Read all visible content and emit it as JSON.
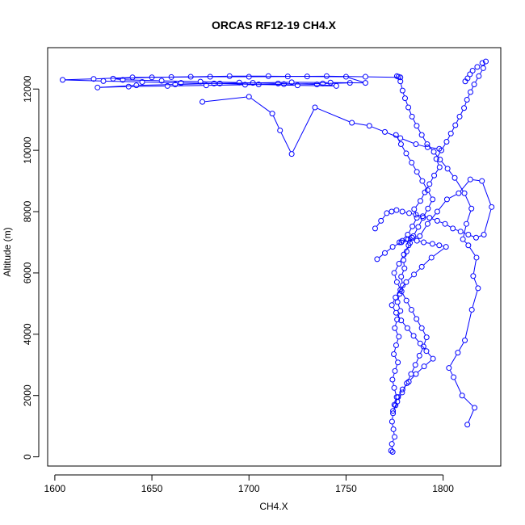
{
  "chart_data": {
    "type": "line",
    "title": "ORCAS RF12-19 CH4.X",
    "xlabel": "CH4.X",
    "ylabel": "Altitude (m)",
    "xlim": [
      1596.3,
      1829.7
    ],
    "ylim": [
      -300,
      13350
    ],
    "xticks": [
      1600,
      1650,
      1700,
      1750,
      1800
    ],
    "yticks": [
      0,
      2000,
      4000,
      6000,
      8000,
      10000,
      12000
    ],
    "xtick_labels": [
      "1600",
      "1650",
      "1700",
      "1750",
      "1800"
    ],
    "ytick_labels": [
      "0",
      "2000",
      "4000",
      "6000",
      "8000",
      "10000",
      "12000"
    ],
    "marker": "open-circle",
    "grid": false,
    "legend": "none",
    "colors": {
      "series": "#0000ff",
      "axes": "#000000",
      "background": "#ffffff"
    },
    "series": [
      {
        "x": [
          1773.2,
          1774.0,
          1773.6,
          1775.0,
          1774.4,
          1773.7,
          1774.2,
          1775.5,
          1776.1,
          1774.8,
          1773.9,
          1775.2,
          1776.7,
          1774.6,
          1775.8,
          1777.2,
          1775.1,
          1776.3,
          1778.0,
          1776.5,
          1777.7,
          1779.2,
          1778.4,
          1780.1,
          1779.6,
          1781.2,
          1782.9,
          1781.8,
          1784.2,
          1786.5,
          1785.1,
          1788.3,
          1790.6,
          1793.0,
          1795.4,
          1798.2,
          1796.5,
          1799.1,
          1801.8,
          1804.0,
          1806.3,
          1808.5,
          1810.8,
          1812.3,
          1814.1,
          1816.0,
          1818.4,
          1820.7,
          1822.0,
          1820.2,
          1817.6,
          1815.2,
          1813.8,
          1812.6,
          1811.4
        ],
        "y": [
          200,
          160,
          420,
          650,
          900,
          1150,
          1420,
          1680,
          1950,
          2250,
          2520,
          2800,
          3080,
          3350,
          3640,
          3920,
          4200,
          4480,
          4760,
          5050,
          5320,
          5600,
          5880,
          6150,
          6420,
          6700,
          6980,
          7250,
          7520,
          7800,
          8080,
          8350,
          8630,
          8900,
          9180,
          9450,
          9720,
          10000,
          10280,
          10550,
          10820,
          11100,
          11380,
          11650,
          11900,
          12150,
          12420,
          12680,
          12900,
          12850,
          12720,
          12600,
          12480,
          12350,
          12250
        ]
      },
      {
        "x": [
          1812.5,
          1816.2,
          1809.8,
          1805.4,
          1803.0,
          1807.6,
          1811.2,
          1814.8,
          1818.0,
          1815.5,
          1817.2,
          1813.0,
          1810.2,
          1812.0,
          1814.6,
          1811.0,
          1806.0,
          1802.3,
          1798.4,
          1795.2,
          1791.8,
          1789.0,
          1786.4,
          1784.0,
          1782.1,
          1780.4,
          1779.1,
          1778.0,
          1777.0,
          1776.2
        ],
        "y": [
          1050,
          1600,
          2000,
          2600,
          2900,
          3400,
          3800,
          4800,
          5500,
          5900,
          6500,
          6900,
          7100,
          7600,
          8100,
          8600,
          9100,
          9400,
          9700,
          9950,
          10200,
          10500,
          10800,
          11100,
          11400,
          11700,
          11950,
          12250,
          12400,
          12420
        ]
      },
      {
        "x": [
          1778.0,
          1760.0,
          1740.0,
          1720.0,
          1700.0,
          1680.0,
          1660.0,
          1640.0,
          1620.0,
          1604.0,
          1625.0,
          1645.0,
          1665.0,
          1685.0,
          1705.0,
          1725.0,
          1745.0,
          1735.0,
          1715.0,
          1695.0,
          1675.0,
          1655.0,
          1635.0,
          1630.0,
          1650.0,
          1670.0,
          1690.0,
          1710.0,
          1730.0,
          1750.0,
          1760.0,
          1742.0,
          1722.0,
          1702.0,
          1682.0,
          1662.0,
          1642.0,
          1622.0,
          1638.0,
          1658.0,
          1678.0,
          1698.0,
          1718.0,
          1738.0,
          1752.0
        ],
        "y": [
          12380,
          12400,
          12420,
          12410,
          12400,
          12400,
          12390,
          12380,
          12330,
          12300,
          12260,
          12230,
          12200,
          12180,
          12150,
          12120,
          12100,
          12150,
          12180,
          12210,
          12240,
          12270,
          12300,
          12340,
          12380,
          12400,
          12420,
          12420,
          12410,
          12400,
          12200,
          12210,
          12220,
          12200,
          12180,
          12150,
          12120,
          12050,
          12080,
          12100,
          12120,
          12140,
          12160,
          12180,
          12200
        ]
      },
      {
        "x": [
          1676.0,
          1700.0,
          1712.0,
          1716.0,
          1722.0,
          1734.0,
          1753.0,
          1762.0,
          1770.0,
          1778.0,
          1786.0,
          1792.0,
          1798.0
        ],
        "y": [
          11580,
          11750,
          11200,
          10650,
          9880,
          11400,
          10900,
          10800,
          10600,
          10400,
          10200,
          10100,
          10050
        ]
      },
      {
        "x": [
          1765.0,
          1768.0,
          1771.0,
          1773.5,
          1776.0,
          1779.0,
          1782.5,
          1786.0,
          1789.5,
          1793.0,
          1797.0,
          1801.0,
          1805.0,
          1809.0,
          1813.0,
          1817.0,
          1821.0,
          1825.0,
          1820.0,
          1814.0,
          1808.0,
          1802.0,
          1797.0,
          1792.0,
          1788.0,
          1784.0,
          1781.0,
          1779.0,
          1777.5
        ],
        "y": [
          7450,
          7700,
          7950,
          8000,
          8050,
          8000,
          7950,
          7900,
          7850,
          7800,
          7700,
          7600,
          7450,
          7350,
          7250,
          7150,
          7250,
          8150,
          9000,
          9050,
          8600,
          8400,
          8000,
          7600,
          7200,
          7150,
          7100,
          7050,
          7000
        ]
      },
      {
        "x": [
          1766.0,
          1770.0,
          1774.0,
          1778.5,
          1782.0,
          1786.5,
          1790.0,
          1794.5,
          1798.0,
          1801.5,
          1794.0,
          1789.0,
          1785.0,
          1781.0,
          1778.0,
          1775.5,
          1773.6,
          1775.8,
          1778.4,
          1781.6,
          1784.8,
          1788.2,
          1791.4,
          1794.8,
          1790.2,
          1786.0,
          1782.3,
          1779.1,
          1776.8,
          1774.9
        ],
        "y": [
          6450,
          6650,
          6850,
          7000,
          7100,
          7050,
          7000,
          6950,
          6900,
          6850,
          6500,
          6200,
          5950,
          5700,
          5450,
          5200,
          4950,
          4700,
          4450,
          4200,
          3950,
          3700,
          3450,
          3200,
          2950,
          2700,
          2450,
          2200,
          1950,
          1700
        ]
      },
      {
        "x": [
          1774.2,
          1776.4,
          1778.9,
          1781.3,
          1783.5,
          1785.7,
          1787.8,
          1789.9,
          1791.5,
          1789.0,
          1786.3,
          1783.7,
          1781.1,
          1778.6,
          1776.2,
          1774.8,
          1777.3,
          1779.8,
          1782.2,
          1784.7,
          1787.2,
          1789.7,
          1792.2,
          1794.6,
          1792.0,
          1789.3,
          1786.5,
          1783.8,
          1781.0,
          1778.3,
          1775.7
        ],
        "y": [
          1500,
          1800,
          2100,
          2400,
          2700,
          3000,
          3300,
          3600,
          3900,
          4200,
          4500,
          4800,
          5100,
          5400,
          5700,
          6000,
          6300,
          6600,
          6900,
          7200,
          7500,
          7800,
          8100,
          8400,
          8700,
          9000,
          9300,
          9600,
          9900,
          10200,
          10500
        ]
      }
    ]
  }
}
